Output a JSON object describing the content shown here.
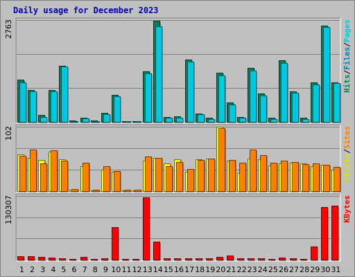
{
  "chart_data": {
    "type": "bar",
    "title": "Daily usage for December 2023",
    "colors": {
      "hits": "#00805c",
      "files": "#00c8e0",
      "pages": "#00c8e0",
      "sites": "#ff8000",
      "visits": "#ffff00",
      "kbytes": "#ff0000",
      "weekend_day": "#00805c",
      "weekday_day": "#000000"
    },
    "days": [
      "1",
      "2",
      "3",
      "4",
      "5",
      "6",
      "7",
      "8",
      "9",
      "10",
      "11",
      "12",
      "13",
      "14",
      "15",
      "16",
      "17",
      "18",
      "19",
      "20",
      "21",
      "22",
      "23",
      "24",
      "25",
      "26",
      "27",
      "28",
      "29",
      "30",
      "31"
    ],
    "weekend_days": [
      "2",
      "3",
      "9",
      "10",
      "16",
      "17",
      "23",
      "24",
      "30",
      "31"
    ],
    "panels": [
      {
        "name": "hits-files",
        "max_label": "2763",
        "ylim": [
          0,
          2763
        ],
        "legend": [
          {
            "text": "Hits",
            "color": "#00805c"
          },
          {
            "text": "/",
            "color": "#000000"
          },
          {
            "text": "Files",
            "color": "#0080c0"
          },
          {
            "text": "/",
            "color": "#000000"
          },
          {
            "text": "Pages",
            "color": "#00c8e0"
          }
        ],
        "series": [
          {
            "key": "hits",
            "values": [
              1150,
              870,
              190,
              860,
              1520,
              30,
              110,
              30,
              240,
              740,
              20,
              20,
              1380,
              2750,
              140,
              150,
              1700,
              230,
              110,
              1330,
              530,
              140,
              1470,
              780,
              110,
              1680,
              830,
              110,
              1070,
              2620,
              1070
            ]
          },
          {
            "key": "files",
            "values": [
              1080,
              830,
              140,
              820,
              1500,
              20,
              90,
              20,
              200,
              700,
              15,
              15,
              1320,
              2600,
              120,
              110,
              1640,
              200,
              80,
              1250,
              470,
              110,
              1400,
              720,
              80,
              1600,
              790,
              80,
              1020,
              2570,
              1050
            ]
          }
        ]
      },
      {
        "name": "visits-sites",
        "max_label": "102",
        "ylim": [
          0,
          102
        ],
        "legend": [
          {
            "text": "Visits",
            "color": "#e0e000"
          },
          {
            "text": "/",
            "color": "#000000"
          },
          {
            "text": "Sites",
            "color": "#ff8000"
          }
        ],
        "series": [
          {
            "key": "visits",
            "values": [
              58,
              53,
              49,
              62,
              50,
              2,
              39,
              1,
              34,
              31,
              1,
              1,
              48,
              53,
              44,
              50,
              31,
              50,
              52,
              102,
              48,
              29,
              51,
              50,
              41,
              44,
              45,
              44,
              40,
              42,
              34
            ]
          },
          {
            "key": "sites",
            "values": [
              56,
              66,
              44,
              65,
              48,
              3,
              45,
              2,
              39,
              32,
              2,
              2,
              55,
              53,
              40,
              46,
              35,
              49,
              51,
              100,
              49,
              45,
              66,
              57,
              45,
              48,
              46,
              43,
              44,
              42,
              38
            ]
          }
        ]
      },
      {
        "name": "kbytes",
        "max_label": "130307",
        "ylim": [
          0,
          130307
        ],
        "legend": [
          {
            "text": "KBytes",
            "color": "#ff0000"
          }
        ],
        "series": [
          {
            "key": "kbytes",
            "values": [
              7000,
              7000,
              5000,
              4000,
              3000,
              2000,
              5000,
              2000,
              3000,
              67000,
              1000,
              1000,
              127000,
              37000,
              3000,
              3000,
              3000,
              3000,
              3000,
              5000,
              8000,
              3000,
              3000,
              3000,
              2000,
              4000,
              3000,
              2000,
              27000,
              108000,
              110000
            ]
          }
        ]
      }
    ]
  }
}
